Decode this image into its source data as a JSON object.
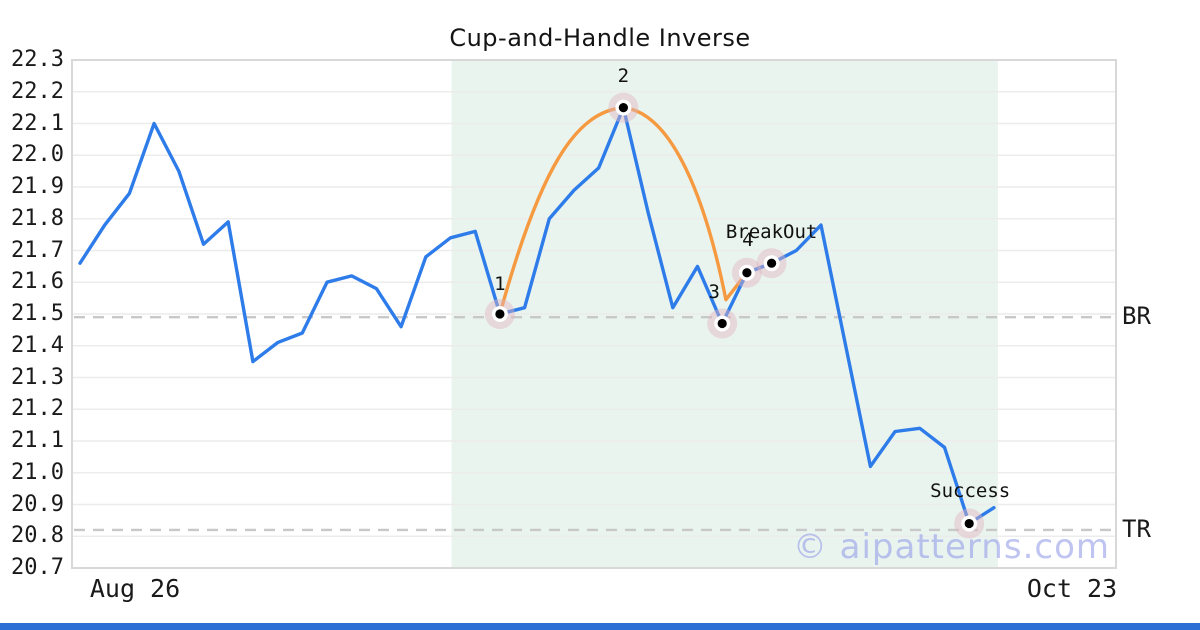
{
  "title": "Cup-and-Handle Inverse",
  "watermark_text": "© aipatterns.com",
  "colors": {
    "price_line": "#2e7ce9",
    "pattern_line": "#f59a40",
    "shade": "#e9f4ef",
    "grid": "#ececec",
    "plot_border": "#d8d8d8",
    "dashed_line": "#c8c8c8",
    "marker_halo": "#dfb3c2",
    "marker_dot": "#000000",
    "watermark": "#97a0e9",
    "bottom_bar": "#2e6fd6"
  },
  "chart_data": {
    "type": "line",
    "title": "Cup-and-Handle Inverse",
    "xlabel": "",
    "ylabel": "",
    "ylim": [
      20.7,
      22.3
    ],
    "y_tick_step": 0.1,
    "y_ticks": [
      22.3,
      22.2,
      22.1,
      22.0,
      21.9,
      21.8,
      21.7,
      21.6,
      21.5,
      21.4,
      21.3,
      21.2,
      21.1,
      21.0,
      20.9,
      20.8,
      20.7
    ],
    "x_tick_labels": [
      "Aug 26",
      "Oct 23"
    ],
    "grid": "horizontal",
    "legend": "none",
    "series": [
      {
        "name": "price",
        "values": [
          21.66,
          21.78,
          21.88,
          22.1,
          21.95,
          21.72,
          21.79,
          21.35,
          21.41,
          21.44,
          21.6,
          21.62,
          21.58,
          21.46,
          21.68,
          21.74,
          21.76,
          21.5,
          21.52,
          21.8,
          21.89,
          21.96,
          22.15,
          21.82,
          21.52,
          21.65,
          21.47,
          21.63,
          21.66,
          21.7,
          21.78,
          21.4,
          21.02,
          21.13,
          21.14,
          21.08,
          20.84,
          20.89
        ]
      }
    ],
    "pattern_overlay": {
      "name": "cup-arc-with-handle",
      "anchors": [
        {
          "index": 17,
          "value": 21.5
        },
        {
          "index": 22,
          "value": 22.15
        },
        {
          "index": 26.15,
          "value": 21.545
        },
        {
          "index": 27,
          "value": 21.63
        }
      ]
    },
    "markers": [
      {
        "index": 17,
        "value": 21.5,
        "label": "1"
      },
      {
        "index": 22,
        "value": 22.15,
        "label": "2"
      },
      {
        "index": 26,
        "value": 21.47,
        "label": "3"
      },
      {
        "index": 27,
        "value": 21.63,
        "label": "4"
      },
      {
        "index": 28,
        "value": 21.66,
        "label": "BreakOut"
      },
      {
        "index": 36,
        "value": 20.84,
        "label": "Success"
      }
    ],
    "hlines": [
      {
        "label": "BR",
        "value": 21.49
      },
      {
        "label": "TR",
        "value": 20.82
      }
    ],
    "shaded_region": {
      "start_index": 15,
      "end_index": 37
    }
  }
}
